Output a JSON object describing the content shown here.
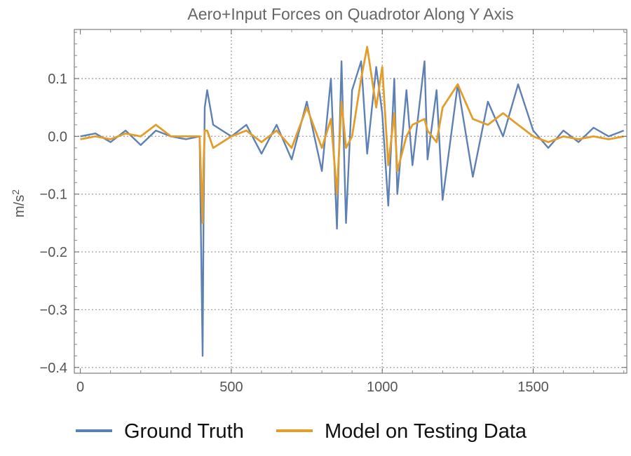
{
  "chart_data": {
    "type": "line",
    "title": "Aero+Input Forces on Quadrotor Along Y Axis",
    "xlabel": "",
    "ylabel": "m/s",
    "ylabel_superscript": "2",
    "xlim": [
      -20,
      1810
    ],
    "ylim": [
      -0.41,
      0.185
    ],
    "x_ticks": [
      0,
      500,
      1000,
      1500
    ],
    "x_tick_labels": [
      "0",
      "500",
      "1000",
      "1500"
    ],
    "y_ticks": [
      0.1,
      0.0,
      -0.1,
      -0.2,
      -0.3,
      -0.4
    ],
    "y_tick_labels": [
      "0.1",
      "0.0",
      "−0.1",
      "−0.2",
      "−0.3",
      "−0.4"
    ],
    "grid": true,
    "legend_position": "bottom",
    "series": [
      {
        "name": "Ground Truth",
        "color": "#5E81B5",
        "x": [
          0,
          50,
          100,
          150,
          200,
          250,
          300,
          350,
          395,
          405,
          408,
          412,
          420,
          440,
          500,
          550,
          600,
          650,
          700,
          750,
          800,
          830,
          850,
          865,
          880,
          900,
          930,
          950,
          980,
          1000,
          1020,
          1040,
          1050,
          1080,
          1100,
          1140,
          1150,
          1180,
          1200,
          1250,
          1300,
          1350,
          1400,
          1450,
          1500,
          1550,
          1600,
          1650,
          1700,
          1750,
          1800
        ],
        "y": [
          0.0,
          0.005,
          -0.01,
          0.01,
          -0.015,
          0.01,
          0.0,
          -0.005,
          0.0,
          -0.38,
          -0.15,
          0.05,
          0.08,
          0.02,
          0.0,
          0.02,
          -0.03,
          0.02,
          -0.04,
          0.06,
          -0.06,
          0.1,
          -0.16,
          0.13,
          -0.15,
          0.08,
          0.13,
          -0.03,
          0.12,
          0.04,
          -0.12,
          0.1,
          -0.1,
          0.08,
          -0.05,
          0.13,
          -0.04,
          0.08,
          -0.11,
          0.09,
          -0.07,
          0.06,
          0.0,
          0.09,
          0.01,
          -0.02,
          0.01,
          -0.01,
          0.015,
          0.0,
          0.01
        ]
      },
      {
        "name": "Model on Testing Data",
        "color": "#E29E2C",
        "x": [
          0,
          50,
          100,
          150,
          200,
          250,
          300,
          350,
          395,
          405,
          408,
          412,
          420,
          440,
          500,
          550,
          600,
          650,
          700,
          750,
          800,
          830,
          850,
          865,
          880,
          900,
          930,
          950,
          980,
          1000,
          1020,
          1040,
          1050,
          1080,
          1100,
          1140,
          1150,
          1180,
          1200,
          1250,
          1300,
          1350,
          1400,
          1450,
          1500,
          1550,
          1600,
          1650,
          1700,
          1750,
          1800
        ],
        "y": [
          -0.005,
          0.0,
          -0.005,
          0.005,
          0.0,
          0.02,
          0.0,
          0.0,
          0.0,
          -0.15,
          -0.05,
          0.01,
          0.01,
          -0.02,
          0.0,
          0.01,
          -0.01,
          0.01,
          -0.02,
          0.05,
          -0.02,
          0.03,
          -0.1,
          0.06,
          -0.02,
          0.0,
          0.1,
          0.155,
          0.05,
          0.12,
          -0.05,
          0.04,
          -0.06,
          0.0,
          0.02,
          0.03,
          0.01,
          -0.01,
          0.05,
          0.09,
          0.03,
          0.02,
          0.04,
          0.02,
          0.0,
          -0.01,
          0.0,
          -0.005,
          0.0,
          -0.005,
          0.0
        ]
      }
    ]
  }
}
